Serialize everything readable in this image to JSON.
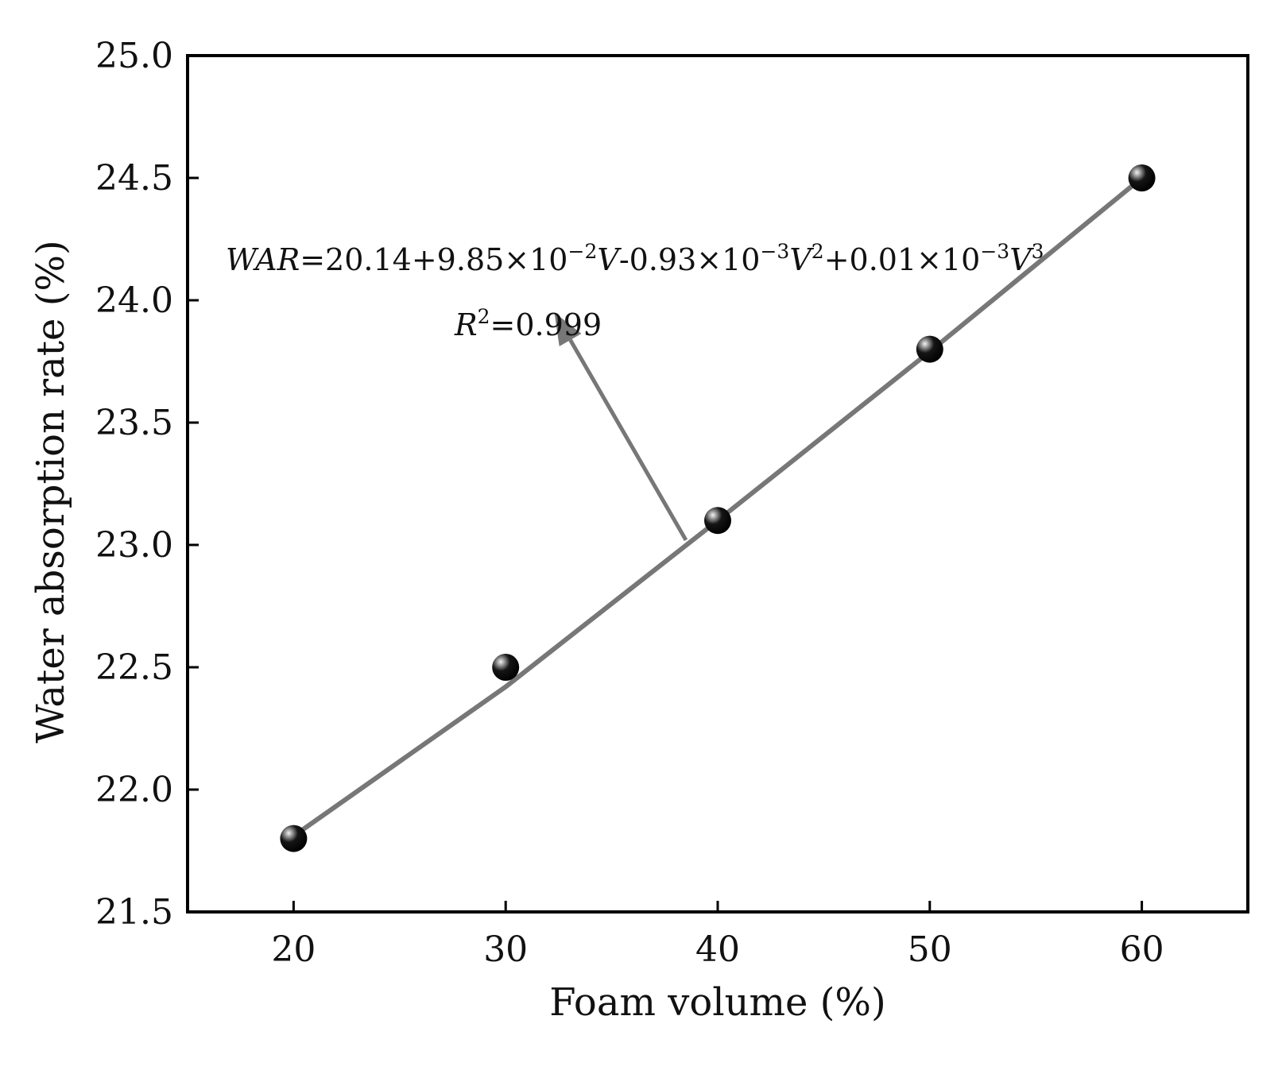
{
  "chart_data": {
    "type": "scatter",
    "title": "",
    "xlabel": "Foam volume (%)",
    "ylabel": "Water absorption rate (%)",
    "xlim": [
      15,
      65
    ],
    "ylim": [
      21.5,
      25.0
    ],
    "xticks": [
      20,
      30,
      40,
      50,
      60
    ],
    "xtick_labels": [
      "20",
      "30",
      "40",
      "50",
      "60"
    ],
    "yticks": [
      21.5,
      22.0,
      22.5,
      23.0,
      23.5,
      24.0,
      24.5,
      25.0
    ],
    "ytick_labels": [
      "21.5",
      "22.0",
      "22.5",
      "23.0",
      "23.5",
      "24.0",
      "24.5",
      "25.0"
    ],
    "grid": false,
    "series": [
      {
        "kind": "points",
        "x": [
          20,
          30,
          40,
          50,
          60
        ],
        "y": [
          21.8,
          22.5,
          23.1,
          23.8,
          24.5
        ],
        "color": "#000000"
      },
      {
        "kind": "fit-line",
        "x": [
          20,
          30,
          40,
          50,
          60
        ],
        "y": [
          21.81,
          22.42,
          23.1,
          23.79,
          24.5
        ],
        "color": "#777777"
      }
    ],
    "annotation": {
      "equation_parts": [
        {
          "text": "WAR",
          "style": "italic"
        },
        {
          "text": "=20.14+9.85×10",
          "style": "normal"
        },
        {
          "text": "−2",
          "style": "sup"
        },
        {
          "text": "V",
          "style": "italic"
        },
        {
          "text": "-0.93×10",
          "style": "normal"
        },
        {
          "text": "−3",
          "style": "sup"
        },
        {
          "text": "V",
          "style": "italic"
        },
        {
          "text": "2",
          "style": "sup"
        },
        {
          "text": "+0.01×10",
          "style": "normal"
        },
        {
          "text": "−3",
          "style": "sup"
        },
        {
          "text": "V",
          "style": "italic"
        },
        {
          "text": "3",
          "style": "sup"
        }
      ],
      "r2_parts": [
        {
          "text": "R",
          "style": "italic"
        },
        {
          "text": "2",
          "style": "sup"
        },
        {
          "text": "=0.999",
          "style": "normal"
        }
      ],
      "arrow_from": [
        38.5,
        23.02
      ],
      "arrow_to": [
        32.3,
        23.95
      ],
      "color": "#777777"
    }
  }
}
